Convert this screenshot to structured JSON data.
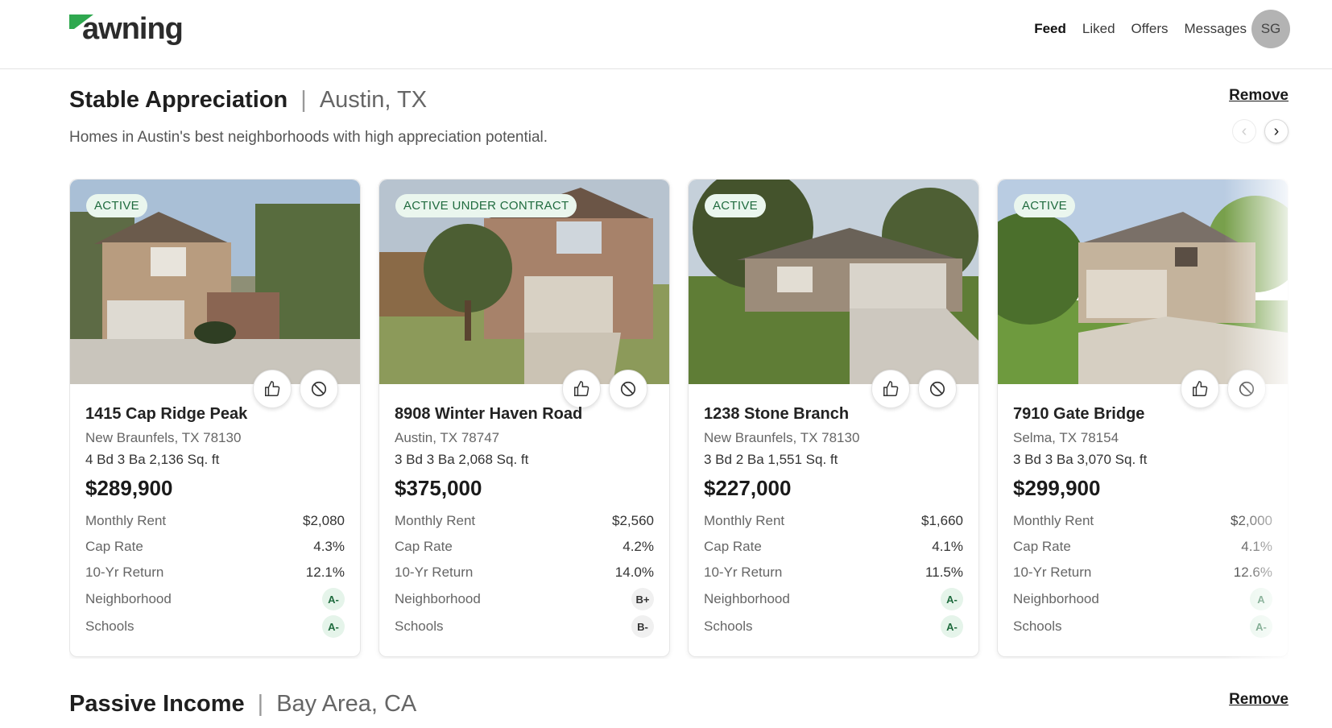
{
  "app": {
    "logo_text": "awning"
  },
  "nav": {
    "items": [
      "Feed",
      "Liked",
      "Offers",
      "Messages"
    ],
    "active": "Feed",
    "avatar_initials": "SG"
  },
  "sections": [
    {
      "name": "Stable Appreciation",
      "location": "Austin, TX",
      "description": "Homes in Austin's best neighborhoods with high appreciation potential.",
      "remove_label": "Remove",
      "listings": [
        {
          "status": "ACTIVE",
          "address": "1415 Cap Ridge Peak",
          "city": "New Braunfels, TX 78130",
          "specs": "4 Bd 3 Ba  2,136 Sq. ft",
          "price": "$289,900",
          "metrics": {
            "monthly_rent": "$2,080",
            "cap_rate": "4.3%",
            "ten_yr_return": "12.1%",
            "neighborhood": "A-",
            "schools": "A-"
          }
        },
        {
          "status": "ACTIVE UNDER CONTRACT",
          "address": "8908 Winter Haven Road",
          "city": "Austin, TX 78747",
          "specs": "3 Bd 3 Ba  2,068 Sq. ft",
          "price": "$375,000",
          "metrics": {
            "monthly_rent": "$2,560",
            "cap_rate": "4.2%",
            "ten_yr_return": "14.0%",
            "neighborhood": "B+",
            "schools": "B-"
          }
        },
        {
          "status": "ACTIVE",
          "address": "1238 Stone Branch",
          "city": "New Braunfels, TX 78130",
          "specs": "3 Bd 2 Ba  1,551 Sq. ft",
          "price": "$227,000",
          "metrics": {
            "monthly_rent": "$1,660",
            "cap_rate": "4.1%",
            "ten_yr_return": "11.5%",
            "neighborhood": "A-",
            "schools": "A-"
          }
        },
        {
          "status": "ACTIVE",
          "address": "7910 Gate Bridge",
          "city": "Selma, TX 78154",
          "specs": "3 Bd 3 Ba  3,070 Sq. ft",
          "price": "$299,900",
          "metrics": {
            "monthly_rent": "$2,000",
            "cap_rate": "4.1%",
            "ten_yr_return": "12.6%",
            "neighborhood": "A",
            "schools": "A-"
          }
        }
      ]
    },
    {
      "name": "Passive Income",
      "location": "Bay Area, CA",
      "remove_label": "Remove"
    }
  ],
  "metric_labels": {
    "monthly_rent": "Monthly Rent",
    "cap_rate": "Cap Rate",
    "ten_yr_return": "10-Yr Return",
    "neighborhood": "Neighborhood",
    "schools": "Schools"
  },
  "icons": {
    "prev": "chevron-left-icon",
    "next": "chevron-right-icon",
    "like": "thumbs-up-icon",
    "dismiss": "block-icon"
  },
  "colors": {
    "badge_bg": "#eaf6ee",
    "badge_text": "#1f6b3e",
    "logo_green": "#2fa84f"
  }
}
